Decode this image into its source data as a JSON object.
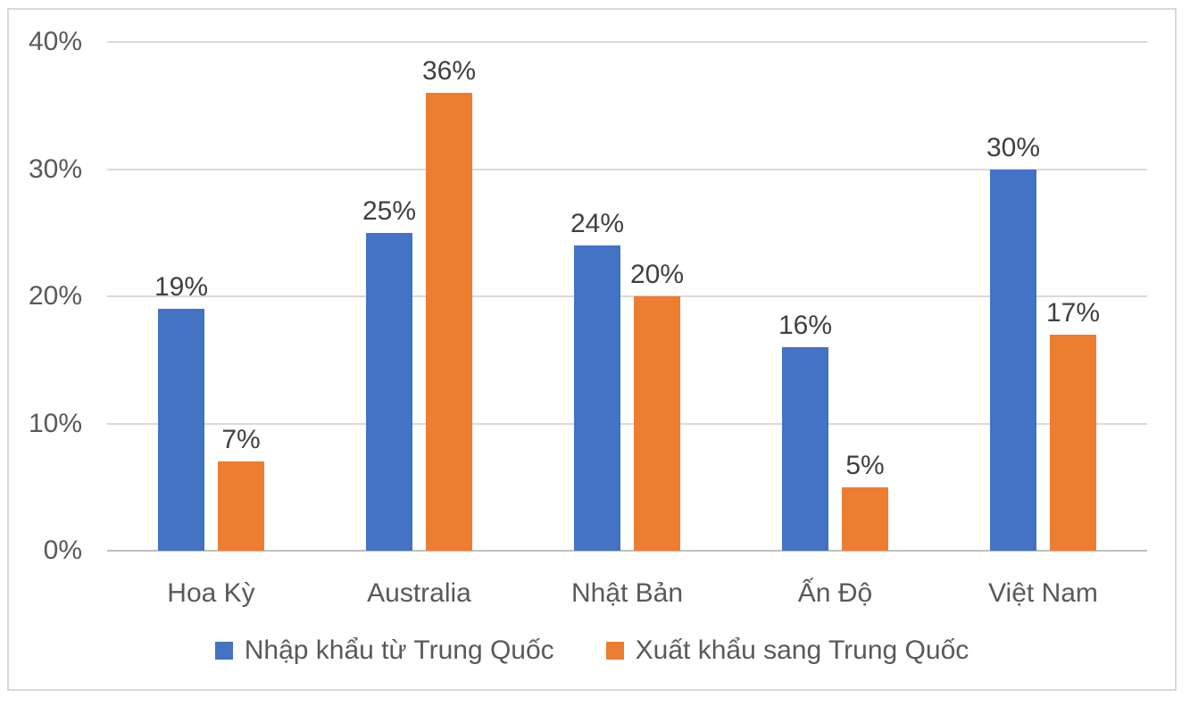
{
  "chart_data": {
    "type": "bar",
    "title": "",
    "categories": [
      "Hoa Kỳ",
      "Australia",
      "Nhật Bản",
      "Ấn Độ",
      "Việt Nam"
    ],
    "series": [
      {
        "name": "Nhập khẩu từ Trung Quốc",
        "values": [
          19,
          25,
          24,
          16,
          30
        ],
        "color": "#4472c4"
      },
      {
        "name": "Xuất khẩu sang Trung Quốc",
        "values": [
          7,
          36,
          20,
          5,
          17
        ],
        "color": "#ed7d31"
      }
    ],
    "data_label_suffix": "%",
    "y_axis": {
      "tick_values": [
        0,
        10,
        20,
        30,
        40
      ],
      "tick_labels": [
        "0%",
        "10%",
        "20%",
        "30%",
        "40%"
      ],
      "ylim": [
        0,
        40
      ]
    },
    "grid": true,
    "legend_position": "bottom",
    "colors": {
      "gridline": "#d9d9d9",
      "axis_line": "#bfbfbf",
      "axis_text": "#595959",
      "data_label_text": "#404040",
      "frame_border": "#d9d9d9",
      "background": "#ffffff"
    }
  }
}
